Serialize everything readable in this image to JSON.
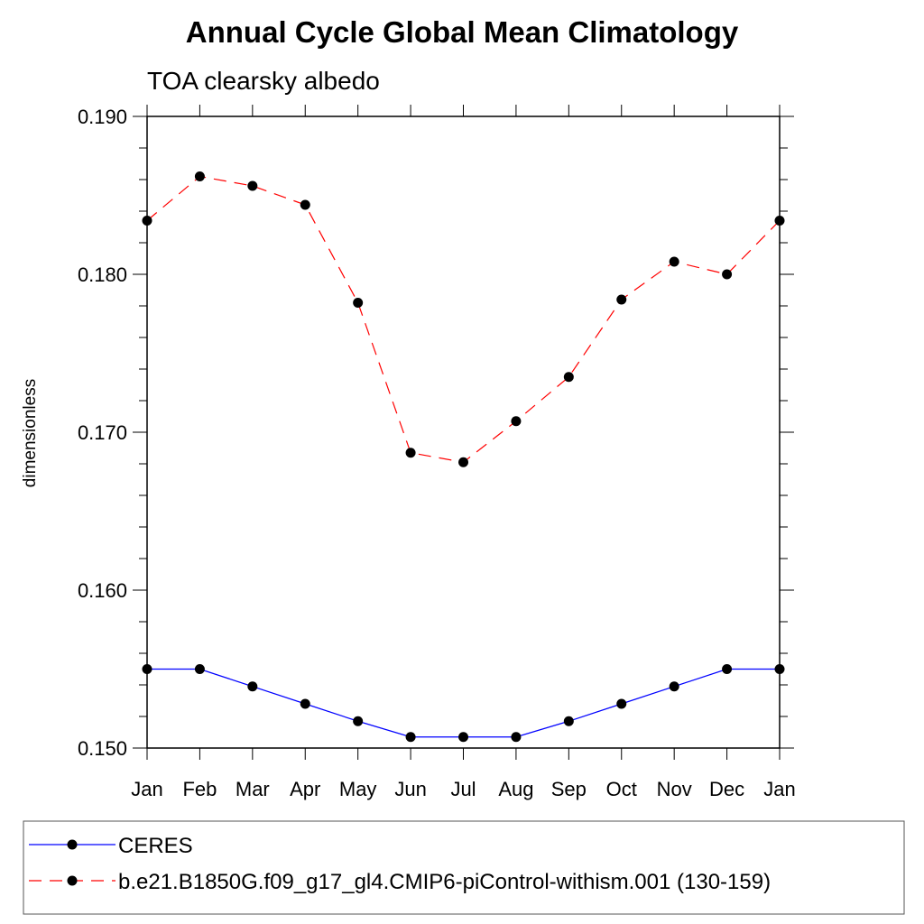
{
  "chart_data": {
    "type": "line",
    "title": "Annual Cycle Global Mean Climatology",
    "subtitle": "TOA clearsky albedo",
    "ylabel": "dimensionless",
    "xlabel": "",
    "categories": [
      "Jan",
      "Feb",
      "Mar",
      "Apr",
      "May",
      "Jun",
      "Jul",
      "Aug",
      "Sep",
      "Oct",
      "Nov",
      "Dec",
      "Jan"
    ],
    "ylim": [
      0.15,
      0.19
    ],
    "yticks": [
      "0.150",
      "0.160",
      "0.170",
      "0.180",
      "0.190"
    ],
    "series": [
      {
        "name": "CERES",
        "color": "#0000ff",
        "dashed": false,
        "values": [
          0.155,
          0.155,
          0.1539,
          0.1528,
          0.1517,
          0.1507,
          0.1507,
          0.1507,
          0.1517,
          0.1528,
          0.1539,
          0.155,
          0.155
        ]
      },
      {
        "name": "b.e21.B1850G.f09_g17_gl4.CMIP6-piControl-withism.001 (130-159)",
        "color": "#ff0000",
        "dashed": true,
        "values": [
          0.1834,
          0.1862,
          0.1856,
          0.1844,
          0.1782,
          0.1687,
          0.1681,
          0.1707,
          0.1735,
          0.1784,
          0.1808,
          0.18,
          0.1834
        ]
      }
    ],
    "legend_position": "bottom"
  }
}
